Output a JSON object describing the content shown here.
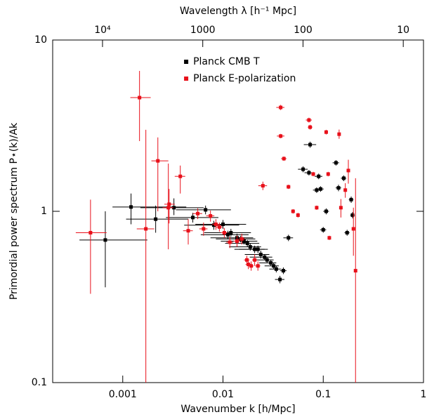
{
  "chart_data": {
    "type": "scatter",
    "xlabel": "Wavenumber k [h/Mpc]",
    "ylabel": "Primordial power spectrum P⋆(k)/Ak",
    "x2label": "Wavelength λ [h⁻¹ Mpc]",
    "xscale": "log",
    "yscale": "log",
    "legend": "upper center",
    "xlim": [
      0.0002,
      1
    ],
    "ylim": [
      0.1,
      10
    ],
    "xticks": [
      0.001,
      0.01,
      0.1,
      1
    ],
    "yticks": [
      0.1,
      1,
      10
    ],
    "x2lim": [
      31416,
      6.283
    ],
    "x2ticks": [
      {
        "value": 10000,
        "label": "10⁴"
      },
      1000,
      100,
      10
    ],
    "series": [
      {
        "name": "Planck CMB T",
        "color": "#000000",
        "x": [
          0.00067,
          0.00121,
          0.00213,
          0.00324,
          0.005,
          0.0067,
          0.0081,
          0.01,
          0.0112,
          0.012,
          0.0138,
          0.015,
          0.0162,
          0.0175,
          0.0187,
          0.0207,
          0.0223,
          0.0238,
          0.026,
          0.0275,
          0.03,
          0.032,
          0.034,
          0.037,
          0.04,
          0.045,
          0.074,
          0.063,
          0.072,
          0.09,
          0.086,
          0.094,
          0.1,
          0.107,
          0.134,
          0.142,
          0.16,
          0.173,
          0.19,
          0.196
        ],
        "values": [
          0.68,
          1.06,
          0.9,
          1.05,
          0.92,
          1.02,
          0.83,
          0.84,
          0.73,
          0.75,
          0.7,
          0.69,
          0.67,
          0.65,
          0.62,
          0.6,
          0.6,
          0.56,
          0.54,
          0.52,
          0.5,
          0.48,
          0.46,
          0.4,
          0.45,
          0.7,
          2.45,
          1.76,
          1.68,
          1.6,
          1.33,
          1.35,
          0.78,
          1.0,
          1.92,
          1.37,
          1.56,
          0.75,
          1.17,
          0.95
        ],
        "y_low": [
          0.36,
          0.84,
          0.75,
          0.95,
          0.86,
          0.96,
          0.78,
          0.79,
          0.69,
          0.71,
          0.66,
          0.66,
          0.64,
          0.62,
          0.59,
          0.57,
          0.57,
          0.53,
          0.52,
          0.5,
          0.48,
          0.46,
          0.44,
          0.38,
          0.43,
          0.67,
          2.35,
          1.69,
          1.62,
          1.54,
          1.28,
          1.3,
          0.75,
          0.96,
          1.85,
          1.31,
          1.5,
          0.72,
          1.12,
          0.91
        ],
        "y_high": [
          1.0,
          1.27,
          1.08,
          1.19,
          0.98,
          1.08,
          0.88,
          0.89,
          0.77,
          0.79,
          0.74,
          0.72,
          0.7,
          0.68,
          0.65,
          0.63,
          0.63,
          0.59,
          0.56,
          0.54,
          0.52,
          0.5,
          0.48,
          0.42,
          0.47,
          0.73,
          2.55,
          1.83,
          1.74,
          1.66,
          1.38,
          1.4,
          0.81,
          1.04,
          1.99,
          1.43,
          1.62,
          0.78,
          1.22,
          0.99
        ],
        "x_low": [
          0.00037,
          0.00079,
          0.00108,
          0.0015,
          0.0027,
          0.0034,
          0.0041,
          0.0053,
          0.006,
          0.0065,
          0.0075,
          0.0085,
          0.0095,
          0.0105,
          0.0115,
          0.013,
          0.0145,
          0.0165,
          0.0185,
          0.02,
          0.023,
          0.026,
          0.029,
          0.033,
          0.037,
          0.04,
          0.064,
          0.056,
          0.065,
          0.082,
          0.079,
          0.087,
          0.093,
          0.1,
          0.124,
          0.133,
          0.15,
          0.163,
          0.18,
          0.186
        ],
        "x_high": [
          0.00176,
          0.0043,
          0.0045,
          0.0064,
          0.009,
          0.012,
          0.0145,
          0.017,
          0.018,
          0.019,
          0.02,
          0.021,
          0.022,
          0.023,
          0.024,
          0.026,
          0.028,
          0.029,
          0.031,
          0.032,
          0.034,
          0.036,
          0.038,
          0.041,
          0.043,
          0.05,
          0.085,
          0.07,
          0.079,
          0.098,
          0.093,
          0.101,
          0.107,
          0.114,
          0.144,
          0.151,
          0.17,
          0.183,
          0.2,
          0.206
        ]
      },
      {
        "name": "Planck E-polarization",
        "color": "#e8101a",
        "x": [
          0.000477,
          0.00147,
          0.0017,
          0.00224,
          0.00285,
          0.0029,
          0.00375,
          0.0045,
          0.0056,
          0.0064,
          0.0075,
          0.0085,
          0.0092,
          0.0103,
          0.0117,
          0.0138,
          0.0154,
          0.0173,
          0.0179,
          0.0191,
          0.0207,
          0.0223,
          0.025,
          0.0376,
          0.0376,
          0.0405,
          0.045,
          0.05,
          0.056,
          0.072,
          0.074,
          0.0795,
          0.086,
          0.107,
          0.112,
          0.115,
          0.144,
          0.15,
          0.166,
          0.178,
          0.2,
          0.21
        ],
        "values": [
          0.75,
          4.61,
          0.79,
          1.97,
          1.05,
          1.1,
          1.6,
          0.77,
          0.97,
          0.79,
          0.94,
          0.84,
          0.81,
          0.75,
          0.66,
          0.67,
          0.69,
          0.52,
          0.49,
          0.48,
          0.52,
          0.48,
          1.41,
          4.04,
          2.75,
          2.03,
          1.39,
          1.0,
          0.95,
          3.41,
          3.1,
          1.65,
          1.05,
          2.9,
          1.65,
          0.7,
          2.82,
          1.05,
          1.33,
          1.73,
          0.79,
          0.45
        ],
        "y_low": [
          0.33,
          2.57,
          0.1,
          1.0,
          0.6,
          0.85,
          1.27,
          0.64,
          0.9,
          0.72,
          0.87,
          0.78,
          0.76,
          0.7,
          0.61,
          0.62,
          0.64,
          0.49,
          0.46,
          0.45,
          0.48,
          0.45,
          1.33,
          3.9,
          2.67,
          1.97,
          1.35,
          0.97,
          0.92,
          3.3,
          3.0,
          1.6,
          1.02,
          2.81,
          1.6,
          0.68,
          2.65,
          0.92,
          1.2,
          1.45,
          0.55,
          0.1
        ],
        "y_high": [
          1.17,
          6.6,
          2.99,
          2.7,
          1.9,
          1.35,
          1.85,
          0.9,
          1.04,
          0.86,
          1.01,
          0.9,
          0.86,
          0.8,
          0.71,
          0.72,
          0.74,
          0.55,
          0.52,
          0.51,
          0.56,
          0.51,
          1.49,
          4.18,
          2.83,
          2.09,
          1.43,
          1.03,
          0.98,
          3.52,
          3.2,
          1.7,
          1.08,
          2.99,
          1.7,
          0.72,
          3.0,
          1.18,
          1.46,
          2.0,
          1.05,
          1.56
        ],
        "x_low": [
          0.00034,
          0.00119,
          0.00138,
          0.00193,
          0.0025,
          0.0026,
          0.0033,
          0.004,
          0.005,
          0.0058,
          0.0068,
          0.0078,
          0.0085,
          0.0095,
          0.0108,
          0.0128,
          0.0143,
          0.0162,
          0.0168,
          0.018,
          0.0195,
          0.021,
          0.0225,
          0.034,
          0.0345,
          0.038,
          0.043,
          0.048,
          0.054,
          0.067,
          0.07,
          0.076,
          0.083,
          0.103,
          0.108,
          0.111,
          0.139,
          0.145,
          0.161,
          0.173,
          0.195,
          0.205
        ],
        "x_high": [
          0.00069,
          0.0019,
          0.00206,
          0.00285,
          0.0032,
          0.0033,
          0.0042,
          0.005,
          0.0062,
          0.007,
          0.0082,
          0.0092,
          0.0099,
          0.011,
          0.0126,
          0.0148,
          0.0165,
          0.0184,
          0.019,
          0.0202,
          0.022,
          0.0236,
          0.0275,
          0.041,
          0.041,
          0.043,
          0.047,
          0.052,
          0.058,
          0.077,
          0.078,
          0.083,
          0.089,
          0.111,
          0.116,
          0.119,
          0.149,
          0.155,
          0.171,
          0.183,
          0.205,
          0.215
        ]
      }
    ]
  }
}
